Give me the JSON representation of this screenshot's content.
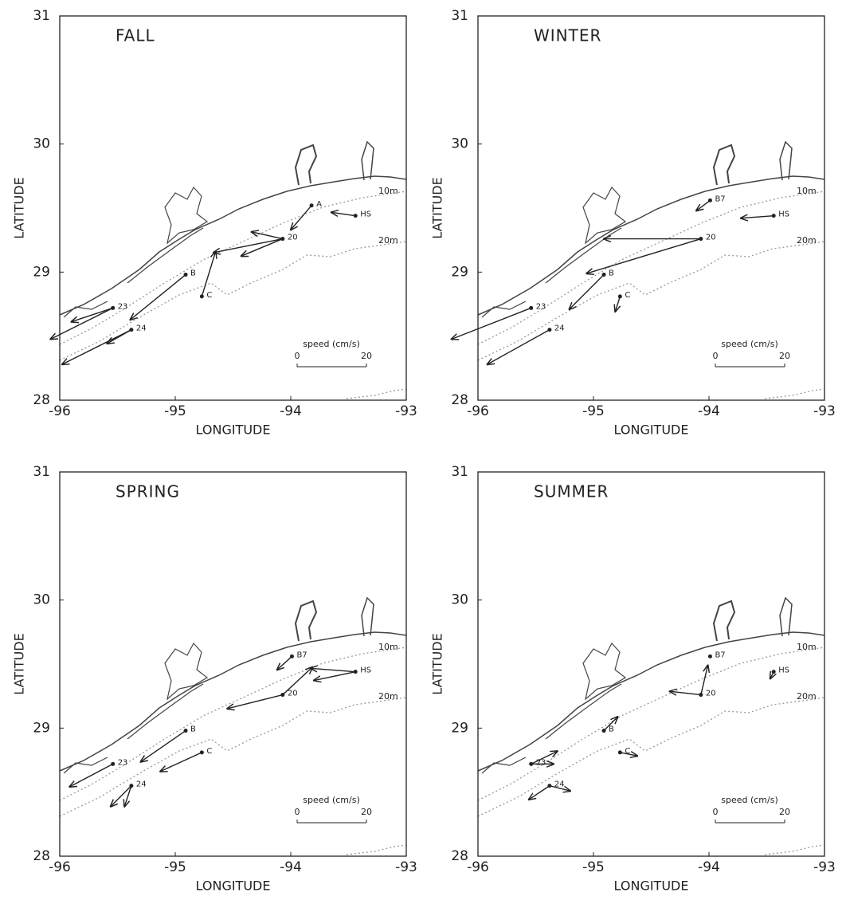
{
  "chart_data": [
    {
      "type": "quiver",
      "title": "FALL",
      "xlabel": "LONGITUDE",
      "ylabel": "LATITUDE",
      "xlim": [
        -96,
        -93
      ],
      "ylim": [
        28,
        31
      ],
      "xticks": [
        -96,
        -95,
        -94,
        -93
      ],
      "yticks": [
        28,
        29,
        30,
        31
      ],
      "isobath_labels": [
        "10m",
        "20m"
      ],
      "scale": {
        "label": "speed (cm/s)",
        "ticks": [
          0,
          20
        ]
      },
      "color": "#222222",
      "stations": [
        {
          "name": "A",
          "lon": -93.82,
          "lat": 29.52,
          "vectors": [
            {
              "u": -6,
              "v": -7
            }
          ]
        },
        {
          "name": "HS",
          "lon": -93.44,
          "lat": 29.44,
          "vectors": [
            {
              "u": -7,
              "v": 1
            }
          ]
        },
        {
          "name": "20",
          "lon": -94.07,
          "lat": 29.26,
          "vectors": [
            {
              "u": -9,
              "v": 2
            },
            {
              "u": -20,
              "v": -4
            },
            {
              "u": -12,
              "v": -5
            }
          ]
        },
        {
          "name": "C",
          "lon": -94.77,
          "lat": 28.81,
          "vectors": [
            {
              "u": 4,
              "v": 13
            }
          ]
        },
        {
          "name": "B",
          "lon": -94.91,
          "lat": 28.98,
          "vectors": [
            {
              "u": -16,
              "v": -13
            }
          ]
        },
        {
          "name": "23",
          "lon": -95.54,
          "lat": 28.72,
          "vectors": [
            {
              "u": -18,
              "v": -9
            },
            {
              "u": -12,
              "v": -4
            }
          ]
        },
        {
          "name": "24",
          "lon": -95.38,
          "lat": 28.55,
          "vectors": [
            {
              "u": -20,
              "v": -10
            },
            {
              "u": -7,
              "v": -4
            }
          ]
        }
      ]
    },
    {
      "type": "quiver",
      "title": "WINTER",
      "xlabel": "LONGITUDE",
      "ylabel": "LATITUDE",
      "xlim": [
        -96,
        -93
      ],
      "ylim": [
        28,
        31
      ],
      "xticks": [
        -96,
        -95,
        -94,
        -93
      ],
      "yticks": [
        28,
        29,
        30,
        31
      ],
      "isobath_labels": [
        "10m",
        "20m"
      ],
      "scale": {
        "label": "speed (cm/s)",
        "ticks": [
          0,
          20
        ]
      },
      "color": "#222222",
      "stations": [
        {
          "name": "B7",
          "lon": -93.99,
          "lat": 29.56,
          "vectors": [
            {
              "u": -4,
              "v": -3
            }
          ]
        },
        {
          "name": "HS",
          "lon": -93.44,
          "lat": 29.44,
          "vectors": [
            {
              "u": -9.5,
              "v": -0.7
            }
          ]
        },
        {
          "name": "20",
          "lon": -94.07,
          "lat": 29.26,
          "vectors": [
            {
              "u": -28,
              "v": 0
            },
            {
              "u": -33,
              "v": -10
            }
          ]
        },
        {
          "name": "B",
          "lon": -94.91,
          "lat": 28.98,
          "vectors": [
            {
              "u": -10,
              "v": -10
            }
          ]
        },
        {
          "name": "C",
          "lon": -94.77,
          "lat": 28.81,
          "vectors": [
            {
              "u": -1.4,
              "v": -4.4
            }
          ]
        },
        {
          "name": "23",
          "lon": -95.54,
          "lat": 28.72,
          "vectors": [
            {
              "u": -23,
              "v": -9
            }
          ]
        },
        {
          "name": "24",
          "lon": -95.38,
          "lat": 28.55,
          "vectors": [
            {
              "u": -18,
              "v": -10
            }
          ]
        }
      ]
    },
    {
      "type": "quiver",
      "title": "SPRING",
      "xlabel": "LONGITUDE",
      "ylabel": "LATITUDE",
      "xlim": [
        -96,
        -93
      ],
      "ylim": [
        28,
        31
      ],
      "xticks": [
        -96,
        -95,
        -94,
        -93
      ],
      "yticks": [
        28,
        29,
        30,
        31
      ],
      "isobath_labels": [
        "10m",
        "20m"
      ],
      "scale": {
        "label": "speed (cm/s)",
        "ticks": [
          0,
          20
        ]
      },
      "color": "#222222",
      "stations": [
        {
          "name": "B7",
          "lon": -93.99,
          "lat": 29.56,
          "vectors": [
            {
              "u": -4.3,
              "v": -3.9
            }
          ]
        },
        {
          "name": "HS",
          "lon": -93.44,
          "lat": 29.44,
          "vectors": [
            {
              "u": -13,
              "v": 1
            },
            {
              "u": -12,
              "v": -2.5
            }
          ]
        },
        {
          "name": "20",
          "lon": -94.07,
          "lat": 29.26,
          "vectors": [
            {
              "u": -16,
              "v": -4
            },
            {
              "u": 8.6,
              "v": 8
            }
          ]
        },
        {
          "name": "B",
          "lon": -94.91,
          "lat": 28.98,
          "vectors": [
            {
              "u": -13,
              "v": -9
            }
          ]
        },
        {
          "name": "C",
          "lon": -94.77,
          "lat": 28.81,
          "vectors": [
            {
              "u": -12,
              "v": -5.5
            }
          ]
        },
        {
          "name": "23",
          "lon": -95.54,
          "lat": 28.72,
          "vectors": [
            {
              "u": -12.5,
              "v": -6.6
            }
          ]
        },
        {
          "name": "24",
          "lon": -95.38,
          "lat": 28.55,
          "vectors": [
            {
              "u": -6,
              "v": -6
            },
            {
              "u": -2,
              "v": -6
            }
          ]
        }
      ]
    },
    {
      "type": "quiver",
      "title": "SUMMER",
      "xlabel": "LONGITUDE",
      "ylabel": "LATITUDE",
      "xlim": [
        -96,
        -93
      ],
      "ylim": [
        28,
        31
      ],
      "xticks": [
        -96,
        -95,
        -94,
        -93
      ],
      "yticks": [
        28,
        29,
        30,
        31
      ],
      "isobath_labels": [
        "10m",
        "20m"
      ],
      "scale": {
        "label": "speed (cm/s)",
        "ticks": [
          0,
          20
        ]
      },
      "color": "#222222",
      "stations": [
        {
          "name": "B7",
          "lon": -93.99,
          "lat": 29.56,
          "vectors": []
        },
        {
          "name": "HS",
          "lon": -93.44,
          "lat": 29.44,
          "vectors": [
            {
              "u": -1,
              "v": -2
            }
          ]
        },
        {
          "name": "20",
          "lon": -94.07,
          "lat": 29.26,
          "vectors": [
            {
              "u": 2,
              "v": 8.5
            },
            {
              "u": -9,
              "v": 1
            }
          ]
        },
        {
          "name": "B",
          "lon": -94.91,
          "lat": 28.98,
          "vectors": [
            {
              "u": 4,
              "v": 4
            }
          ]
        },
        {
          "name": "C",
          "lon": -94.77,
          "lat": 28.81,
          "vectors": [
            {
              "u": 5,
              "v": -1
            }
          ]
        },
        {
          "name": "23",
          "lon": -95.54,
          "lat": 28.72,
          "vectors": [
            {
              "u": 7.6,
              "v": 3.7
            },
            {
              "u": 6.5,
              "v": 0
            }
          ]
        },
        {
          "name": "24",
          "lon": -95.38,
          "lat": 28.55,
          "vectors": [
            {
              "u": -6,
              "v": -4
            },
            {
              "u": 6,
              "v": -1.5
            }
          ]
        }
      ]
    }
  ]
}
